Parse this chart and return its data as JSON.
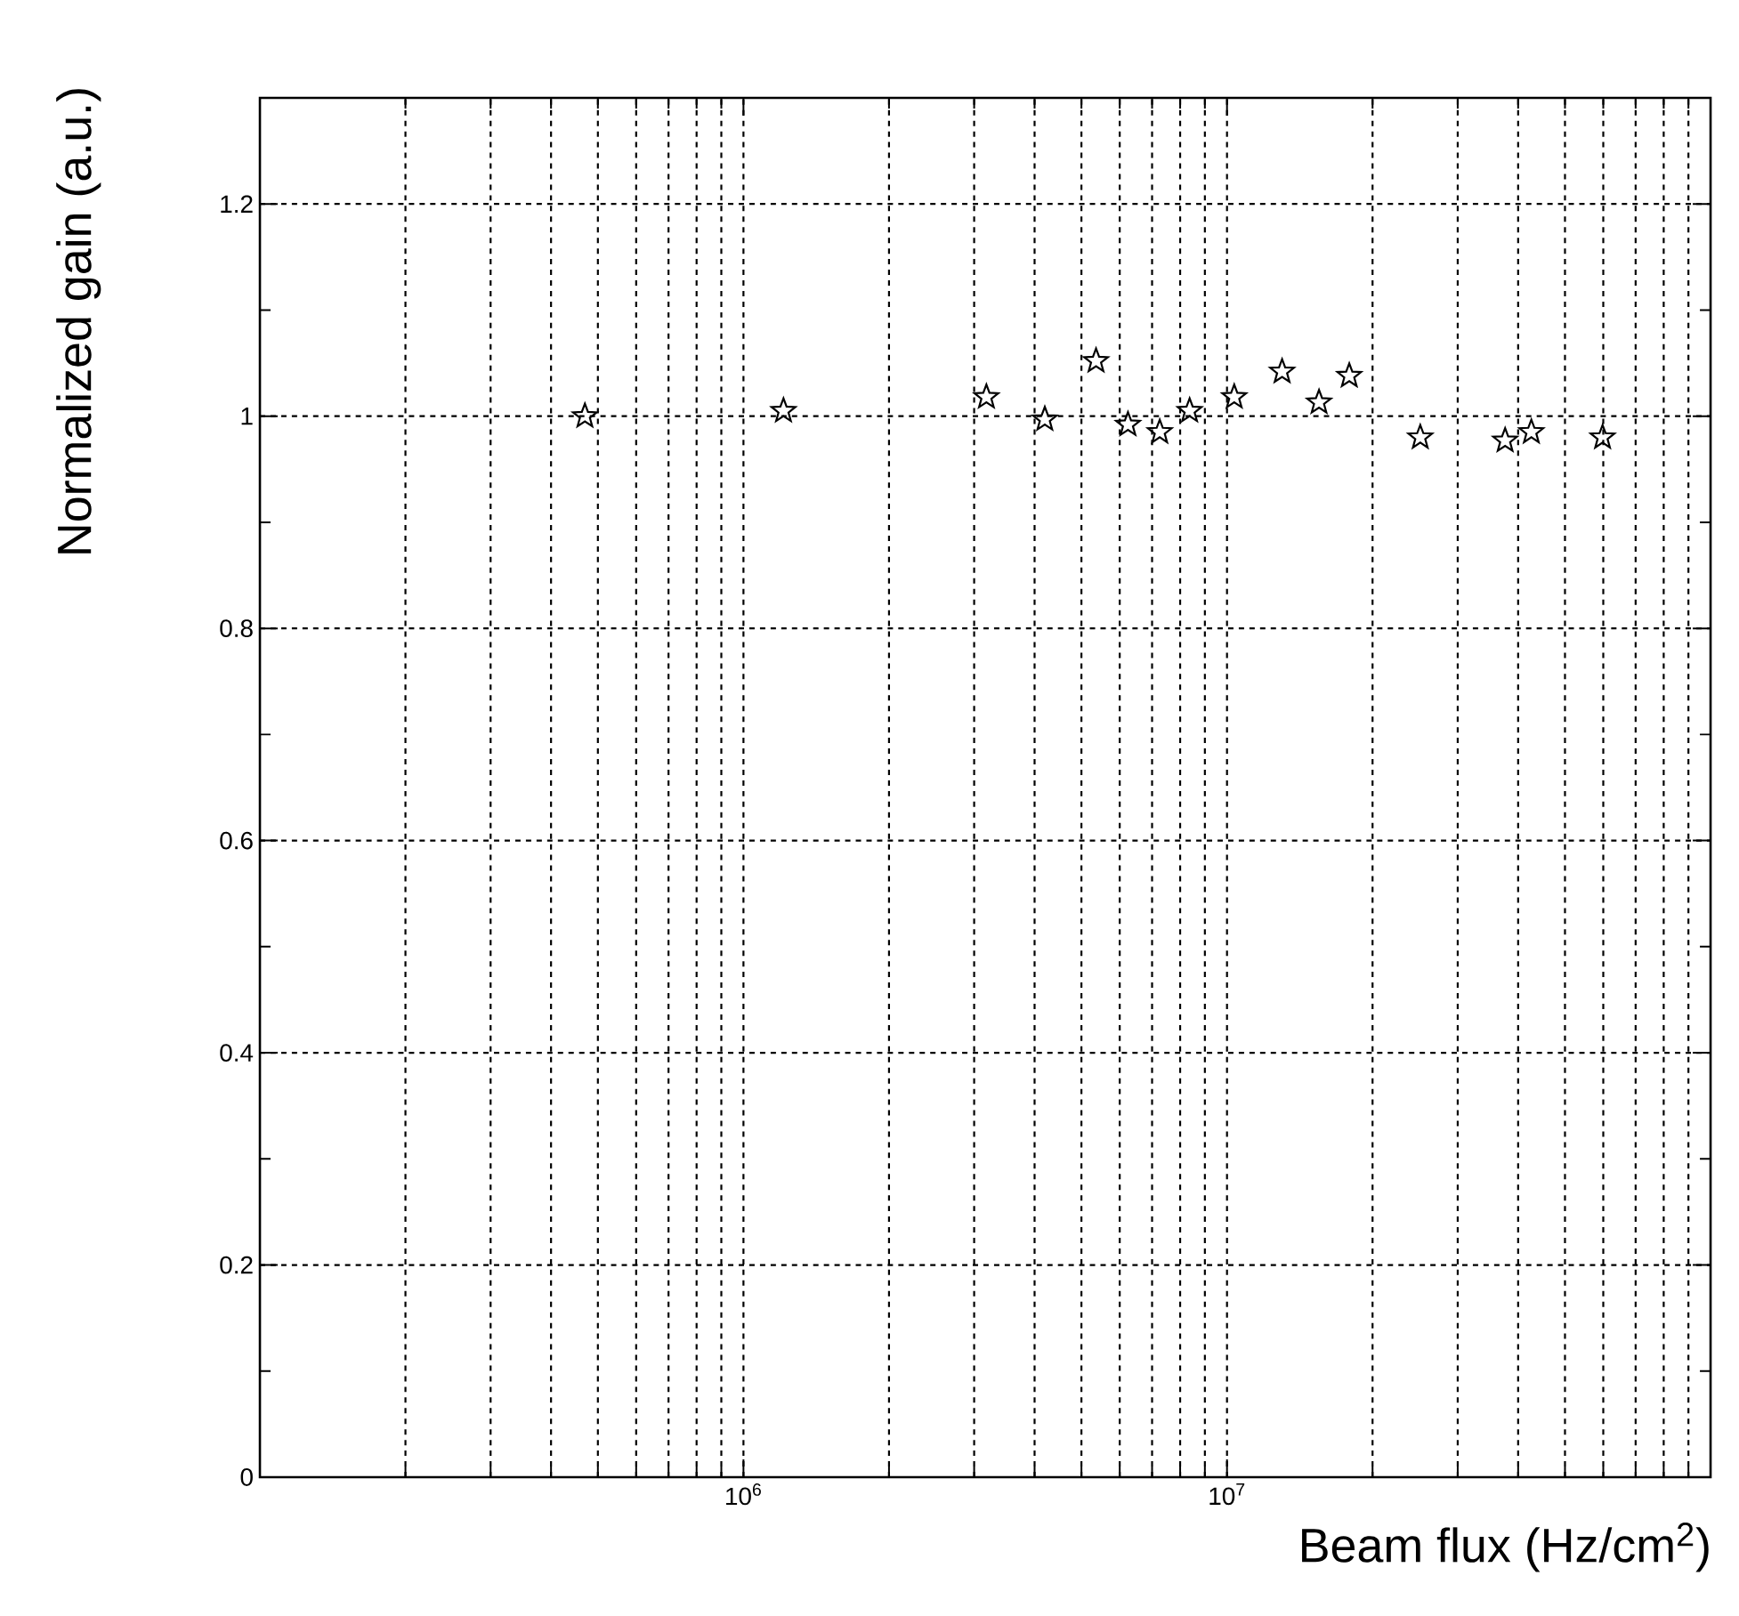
{
  "chart_data": {
    "type": "scatter",
    "xlabel": "Beam flux (Hz/cm$^{2}$)",
    "ylabel": "Normalized gain (a.u.)",
    "log": "x",
    "xlim": [
      100000,
      100000000
    ],
    "ylim": [
      0,
      1.3
    ],
    "xticks": [
      {
        "value": 1000000,
        "label": "10$^{6}$"
      },
      {
        "value": 10000000,
        "label": "10$^{7}$"
      }
    ],
    "yticks": [
      0,
      {
        "value": 0.2,
        "label": "0.2"
      },
      {
        "value": 0.4,
        "label": "0.4"
      },
      {
        "value": 0.6,
        "label": "0.6"
      },
      {
        "value": 0.8,
        "label": "0.8"
      },
      1,
      {
        "value": 1.2,
        "label": "1.2"
      }
    ],
    "grid": true,
    "marker": "star",
    "series": [
      {
        "color": "#000000",
        "x": [
          470000,
          1210000,
          3180000,
          4200000,
          5360000,
          6240000,
          7260000,
          8370000,
          10350000,
          13000000,
          15500000,
          17900000,
          25100000,
          37600000,
          42600000,
          59800000
        ],
        "values": [
          1.0,
          1.005,
          1.018,
          0.997,
          1.052,
          0.992,
          0.985,
          1.005,
          1.018,
          1.042,
          1.013,
          1.038,
          0.98,
          0.977,
          0.985,
          0.98
        ]
      }
    ]
  }
}
